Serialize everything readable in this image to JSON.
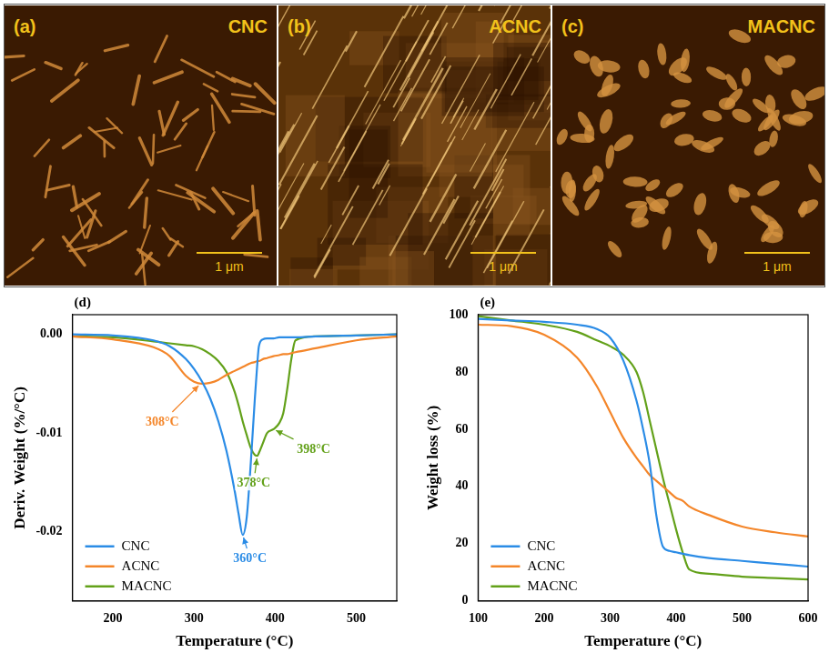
{
  "images": [
    {
      "label": "(a)",
      "title": "CNC",
      "scale_bar": "1 μm"
    },
    {
      "label": "(b)",
      "title": "ACNC",
      "scale_bar": "1 μm"
    },
    {
      "label": "(c)",
      "title": "MACNC",
      "scale_bar": "1 μm"
    }
  ],
  "chart_data": [
    {
      "type": "line",
      "label": "(d)",
      "x_label": "Temperature (°C)",
      "y_label": "Deriv. Weight (%/°C)",
      "x": [
        150,
        200,
        250,
        270,
        290,
        300,
        310,
        320,
        330,
        340,
        350,
        355,
        360,
        365,
        370,
        375,
        378,
        380,
        385,
        390,
        398,
        405,
        410,
        415,
        420,
        425,
        450,
        500,
        550
      ],
      "series": [
        {
          "name": "CNC",
          "color": "#2b8ce6",
          "values": [
            0,
            -0.0001,
            -0.0006,
            -0.0012,
            -0.0025,
            -0.0035,
            -0.0048,
            -0.0065,
            -0.0088,
            -0.0118,
            -0.0158,
            -0.0182,
            -0.0203,
            -0.0185,
            -0.013,
            -0.0065,
            -0.003,
            -0.0012,
            -0.0005,
            -0.0004,
            -0.0004,
            -0.0003,
            -0.0003,
            -0.0003,
            -0.0003,
            -0.0003,
            -0.0002,
            -0.0001,
            0
          ]
        },
        {
          "name": "ACNC",
          "color": "#f4862a",
          "values": [
            -0.0002,
            -0.0005,
            -0.0013,
            -0.0022,
            -0.0042,
            -0.0048,
            -0.005,
            -0.0049,
            -0.0046,
            -0.0041,
            -0.0037,
            -0.0035,
            -0.0033,
            -0.0031,
            -0.0029,
            -0.0028,
            -0.0027,
            -0.0027,
            -0.0025,
            -0.0024,
            -0.0022,
            -0.0021,
            -0.002,
            -0.002,
            -0.0019,
            -0.0018,
            -0.0014,
            -0.0006,
            -0.0002
          ]
        },
        {
          "name": "MACNC",
          "color": "#63a11a",
          "values": [
            -0.0002,
            -0.0003,
            -0.0007,
            -0.0009,
            -0.0011,
            -0.0012,
            -0.0015,
            -0.002,
            -0.0027,
            -0.0038,
            -0.0058,
            -0.0072,
            -0.0088,
            -0.0102,
            -0.0115,
            -0.0122,
            -0.0123,
            -0.012,
            -0.011,
            -0.01,
            -0.0096,
            -0.009,
            -0.008,
            -0.0055,
            -0.0025,
            -0.0006,
            -0.0002,
            -0.0001,
            0
          ]
        }
      ],
      "xlim": [
        150,
        550
      ],
      "xticks": [
        200,
        300,
        400,
        500
      ],
      "ylim": [
        -0.027,
        0.002
      ],
      "yticks": [
        {
          "value": -0.02,
          "label": "-0.02"
        },
        {
          "value": -0.01,
          "label": "-0.01"
        },
        {
          "value": 0,
          "label": "0.00"
        }
      ],
      "grid": false,
      "legend": "lower left",
      "annotations": [
        {
          "text": "308°C",
          "x": 308,
          "y": -0.005,
          "color": "#f4862a"
        },
        {
          "text": "360°C",
          "x": 360,
          "y": -0.0203,
          "color": "#2b8ce6"
        },
        {
          "text": "378°C",
          "x": 378,
          "y": -0.0123,
          "color": "#63a11a"
        },
        {
          "text": "398°C",
          "x": 398,
          "y": -0.0096,
          "color": "#63a11a"
        }
      ]
    },
    {
      "type": "line",
      "label": "(e)",
      "x_label": "Temperature (°C)",
      "y_label": "Weight loss (%)",
      "x": [
        100,
        150,
        200,
        250,
        280,
        300,
        320,
        340,
        350,
        360,
        370,
        380,
        390,
        400,
        410,
        420,
        450,
        500,
        550,
        600
      ],
      "series": [
        {
          "name": "CNC",
          "color": "#2b8ce6",
          "values": [
            98.5,
            98,
            97.5,
            96.5,
            95,
            92,
            84,
            70,
            60,
            48,
            30,
            19,
            17.5,
            17,
            16.5,
            16,
            15,
            14,
            13,
            12
          ]
        },
        {
          "name": "ACNC",
          "color": "#f4862a",
          "values": [
            96.5,
            96,
            93,
            85,
            75,
            66,
            57,
            50,
            47,
            44,
            42,
            40,
            38,
            36,
            35,
            33,
            30,
            26,
            24,
            22.5
          ]
        },
        {
          "name": "MACNC",
          "color": "#63a11a",
          "values": [
            99.5,
            98,
            96.5,
            94,
            91,
            89,
            86,
            80,
            73,
            63,
            53,
            43,
            34,
            25,
            17,
            11,
            9.5,
            8.5,
            8,
            7.5
          ]
        }
      ],
      "xlim": [
        100,
        600
      ],
      "xticks": [
        100,
        200,
        300,
        400,
        500,
        600
      ],
      "ylim": [
        0,
        100
      ],
      "yticks": [
        0,
        20,
        40,
        60,
        80,
        100
      ],
      "grid": false,
      "legend": "lower left"
    }
  ]
}
